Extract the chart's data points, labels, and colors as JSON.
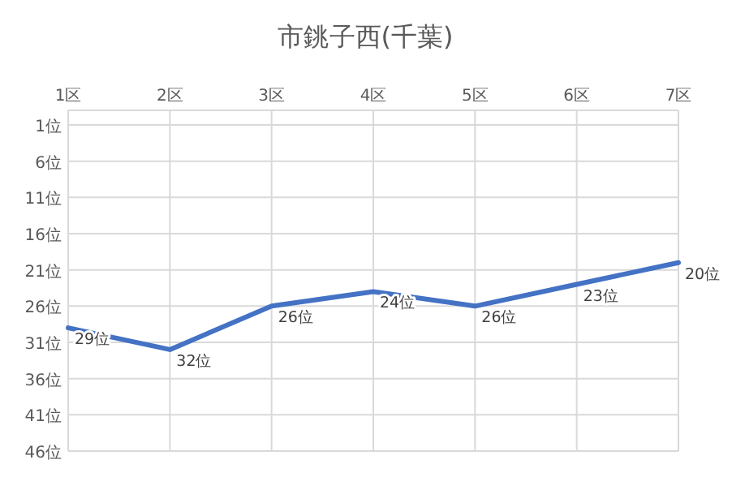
{
  "chart_data": {
    "type": "line",
    "title": "市銚子西(千葉)",
    "categories": [
      "1区",
      "2区",
      "3区",
      "4区",
      "5区",
      "6区",
      "7区"
    ],
    "values": [
      29,
      32,
      26,
      24,
      26,
      23,
      20
    ],
    "color": "#4472c4",
    "value_labels": [
      "29位",
      "32位",
      "26位",
      "24位",
      "26位",
      "23位",
      "20位"
    ],
    "ylim": [
      46,
      1
    ],
    "yticks": [
      {
        "value": 1,
        "label": "1位"
      },
      {
        "value": 6,
        "label": "6位"
      },
      {
        "value": 11,
        "label": "11位"
      },
      {
        "value": 16,
        "label": "16位"
      },
      {
        "value": 21,
        "label": "21位"
      },
      {
        "value": 26,
        "label": "26位"
      },
      {
        "value": 31,
        "label": "31位"
      },
      {
        "value": 36,
        "label": "36位"
      },
      {
        "value": 41,
        "label": "41位"
      },
      {
        "value": 46,
        "label": "46位"
      }
    ],
    "grid": true
  }
}
